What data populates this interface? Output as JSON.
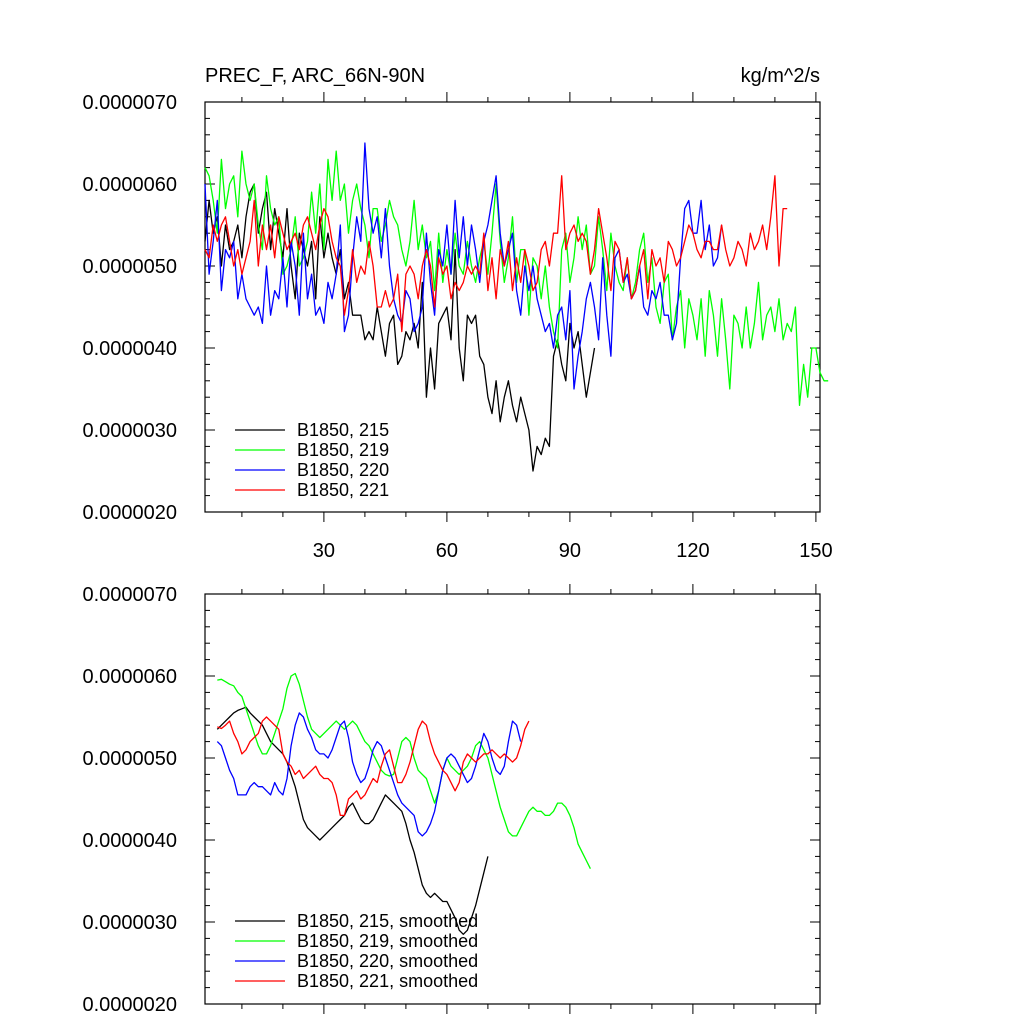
{
  "figure": {
    "title": "PREC_F, ARC_66N-90N",
    "units": "kg/m^2/s"
  },
  "chart_data": [
    {
      "type": "line",
      "title": "PREC_F, ARC_66N-90N",
      "units_label": "kg/m^2/s",
      "xlabel": "",
      "ylabel": "",
      "xlim": [
        1,
        151
      ],
      "ylim": [
        2e-06,
        7e-06
      ],
      "x_ticks": [
        30,
        60,
        90,
        120,
        150
      ],
      "x_tick_labels": [
        "30",
        "60",
        "90",
        "120",
        "150"
      ],
      "y_ticks": [
        2e-06,
        3e-06,
        4e-06,
        5e-06,
        6e-06,
        7e-06
      ],
      "y_tick_labels": [
        "0.0000020",
        "0.0000030",
        "0.0000040",
        "0.0000050",
        "0.0000060",
        "0.0000070"
      ],
      "legend_position": "bottom-left",
      "series": [
        {
          "name": "B1850, 215",
          "color": "#000000",
          "x0": 1,
          "values": [
            5.3,
            5.8,
            5.4,
            5.6,
            5.0,
            5.5,
            5.2,
            5.3,
            5.5,
            5.1,
            5.6,
            5.9,
            6.0,
            5.4,
            5.7,
            5.9,
            5.2,
            5.7,
            5.4,
            5.1,
            5.7,
            5.0,
            4.6,
            5.4,
            5.2,
            5.0,
            5.3,
            4.6,
            5.6,
            5.1,
            5.4,
            5.1,
            4.9,
            5.2,
            4.6,
            4.8,
            4.4,
            4.4,
            4.4,
            4.1,
            4.2,
            4.1,
            4.5,
            4.2,
            3.9,
            4.3,
            4.4,
            3.8,
            3.9,
            4.2,
            4.1,
            4.3,
            4.0,
            4.8,
            3.4,
            4.0,
            3.5,
            4.3,
            4.4,
            4.5,
            4.1,
            5.2,
            4.0,
            3.6,
            4.4,
            4.3,
            4.4,
            3.9,
            3.8,
            3.4,
            3.2,
            3.6,
            3.1,
            3.4,
            3.6,
            3.3,
            3.1,
            3.4,
            3.2,
            3.0,
            2.5,
            2.8,
            2.7,
            2.9,
            2.8,
            3.9,
            4.1,
            3.8,
            3.6,
            4.3,
            4.0,
            4.2,
            3.8,
            3.4,
            3.7,
            4.0
          ]
        },
        {
          "name": "B1850, 219",
          "color": "#00ff00",
          "x0": 1,
          "values": [
            6.2,
            6.1,
            5.8,
            5.4,
            6.3,
            5.7,
            6.0,
            6.1,
            5.6,
            6.4,
            6.0,
            5.8,
            6.0,
            5.5,
            5.2,
            6.1,
            5.7,
            5.5,
            5.6,
            4.9,
            5.0,
            5.2,
            5.6,
            5.0,
            5.1,
            5.3,
            5.9,
            5.4,
            6.0,
            5.2,
            6.3,
            5.8,
            6.4,
            5.8,
            6.0,
            5.4,
            5.8,
            6.0,
            5.7,
            5.5,
            5.1,
            5.7,
            5.7,
            5.3,
            5.5,
            5.8,
            5.6,
            5.5,
            5.2,
            5.0,
            5.3,
            5.8,
            5.2,
            5.5,
            5.1,
            5.3,
            4.7,
            5.4,
            4.8,
            5.2,
            4.9,
            5.4,
            5.0,
            4.9,
            5.3,
            5.0,
            4.8,
            5.1,
            5.3,
            4.9,
            5.4,
            6.0,
            5.3,
            4.8,
            5.1,
            5.6,
            4.8,
            5.2,
            5.2,
            4.4,
            5.1,
            5.0,
            4.6,
            5.0,
            4.5,
            4.2,
            4.0,
            5.2,
            5.4,
            4.8,
            5.1,
            5.6,
            5.2,
            5.5,
            4.9,
            5.0,
            5.6,
            5.2,
            4.7,
            5.4,
            5.0,
            4.8,
            4.7,
            5.1,
            4.6,
            4.8,
            5.2,
            5.4,
            4.8,
            5.1,
            4.5,
            4.3,
            4.8,
            4.9,
            4.1,
            4.5,
            4.7,
            4.0,
            4.6,
            4.4,
            4.1,
            4.6,
            3.9,
            4.7,
            4.4,
            3.9,
            4.6,
            4.1,
            3.5,
            4.4,
            4.3,
            4.0,
            4.5,
            4.0,
            4.3,
            4.8,
            4.1,
            4.4,
            4.5,
            4.2,
            4.6,
            4.1,
            4.3,
            4.2,
            4.5,
            3.3,
            3.8,
            3.4,
            4.0,
            4.0,
            3.7,
            3.6,
            3.6
          ]
        },
        {
          "name": "B1850, 220",
          "color": "#0000ff",
          "x0": 1,
          "values": [
            6.0,
            4.9,
            5.3,
            5.8,
            4.7,
            5.2,
            5.1,
            5.3,
            4.6,
            4.9,
            4.6,
            4.5,
            4.4,
            4.5,
            4.3,
            5.0,
            4.4,
            4.7,
            4.6,
            5.1,
            4.5,
            5.3,
            5.0,
            4.4,
            5.4,
            4.6,
            4.9,
            4.4,
            4.5,
            4.3,
            4.8,
            4.6,
            4.9,
            5.5,
            4.2,
            4.4,
            5.1,
            5.6,
            5.3,
            6.5,
            5.7,
            5.4,
            5.6,
            5.1,
            5.7,
            5.0,
            4.6,
            4.4,
            4.3,
            4.7,
            4.6,
            4.2,
            4.3,
            4.5,
            5.4,
            4.8,
            4.4,
            5.2,
            5.0,
            5.5,
            4.9,
            5.8,
            5.1,
            5.6,
            5.0,
            5.5,
            5.2,
            4.8,
            5.3,
            5.5,
            5.8,
            6.1,
            5.4,
            5.0,
            5.2,
            5.4,
            4.7,
            4.4,
            5.0,
            4.7,
            5.0,
            4.6,
            4.4,
            4.2,
            4.3,
            4.0,
            4.4,
            4.5,
            4.1,
            4.7,
            3.5,
            3.9,
            4.2,
            4.6,
            4.8,
            4.5,
            4.1,
            5.1,
            4.4,
            3.9,
            5.1,
            5.2,
            4.8,
            4.9,
            4.6,
            4.7,
            5.0,
            4.5,
            4.4,
            4.7,
            4.6,
            4.8,
            4.4,
            4.4,
            4.1,
            4.3,
            5.1,
            5.7,
            5.8,
            5.4,
            5.4,
            5.8,
            5.2,
            5.5,
            5.0,
            5.1,
            5.5
          ]
        },
        {
          "name": "B1850, 221",
          "color": "#ff0000",
          "x0": 1,
          "values": [
            5.2,
            5.1,
            5.5,
            5.3,
            5.5,
            5.6,
            5.3,
            5.0,
            5.2,
            4.9,
            5.1,
            5.3,
            5.8,
            5.0,
            5.5,
            5.2,
            5.5,
            5.1,
            5.6,
            5.4,
            5.2,
            5.3,
            5.4,
            5.2,
            5.5,
            5.6,
            5.4,
            5.2,
            5.5,
            5.7,
            5.6,
            5.3,
            5.1,
            5.0,
            4.4,
            4.7,
            5.2,
            4.8,
            5.0,
            4.9,
            5.3,
            5.0,
            4.5,
            4.5,
            4.7,
            4.5,
            4.6,
            4.9,
            4.2,
            4.9,
            5.0,
            4.9,
            4.6,
            5.0,
            5.2,
            5.0,
            4.5,
            5.1,
            4.9,
            5.0,
            4.6,
            4.8,
            4.7,
            4.8,
            5.0,
            4.9,
            5.0,
            4.9,
            5.4,
            4.7,
            5.1,
            4.6,
            5.2,
            5.0,
            5.3,
            4.7,
            5.1,
            4.8,
            5.2,
            5.0,
            4.7,
            4.8,
            5.2,
            5.3,
            5.0,
            5.4,
            5.4,
            6.1,
            5.2,
            5.4,
            5.5,
            5.3,
            5.4,
            5.3,
            4.9,
            5.2,
            5.7,
            5.4,
            5.1,
            4.7,
            5.3,
            5.2,
            4.8,
            5.1,
            4.6,
            4.7,
            5.0,
            5.2,
            4.6,
            5.2,
            5.0,
            5.1,
            4.8,
            5.3,
            5.2,
            5.0,
            5.1,
            5.3,
            5.5,
            5.4,
            5.2,
            5.1,
            5.3,
            5.3,
            5.2,
            5.2,
            5.5,
            5.2,
            5.0,
            5.1,
            5.3,
            5.2,
            5.0,
            5.4,
            5.2,
            5.3,
            5.5,
            5.2,
            5.6,
            6.1,
            5.0,
            5.7,
            5.7
          ]
        }
      ]
    },
    {
      "type": "line",
      "title": "",
      "xlabel": "",
      "ylabel": "",
      "xlim": [
        1,
        151
      ],
      "ylim": [
        2e-06,
        7e-06
      ],
      "x_ticks": [
        30,
        60,
        90,
        120,
        150
      ],
      "x_tick_labels": [],
      "y_ticks": [
        2e-06,
        3e-06,
        4e-06,
        5e-06,
        6e-06,
        7e-06
      ],
      "y_tick_labels": [
        "0.0000020",
        "0.0000030",
        "0.0000040",
        "0.0000050",
        "0.0000060",
        "0.0000070"
      ],
      "legend_position": "bottom-left",
      "series": [
        {
          "name": "B1850, 215, smoothed",
          "color": "#000000",
          "x0": 4,
          "values": [
            5.35,
            5.4,
            5.45,
            5.5,
            5.55,
            5.58,
            5.6,
            5.62,
            5.55,
            5.5,
            5.45,
            5.4,
            5.3,
            5.2,
            5.15,
            5.1,
            5.05,
            4.95,
            4.8,
            4.65,
            4.45,
            4.25,
            4.15,
            4.1,
            4.05,
            4.0,
            4.05,
            4.1,
            4.15,
            4.2,
            4.25,
            4.3,
            4.4,
            4.45,
            4.35,
            4.25,
            4.2,
            4.2,
            4.25,
            4.35,
            4.45,
            4.55,
            4.5,
            4.45,
            4.4,
            4.35,
            4.2,
            4.0,
            3.85,
            3.65,
            3.45,
            3.35,
            3.3,
            3.35,
            3.3,
            3.25,
            3.25,
            3.15,
            3.05,
            2.9,
            2.85,
            2.9,
            3.05,
            3.2,
            3.4,
            3.6,
            3.8
          ]
        },
        {
          "name": "B1850, 219, smoothed",
          "color": "#00ff00",
          "x0": 4,
          "values": [
            5.95,
            5.96,
            5.93,
            5.9,
            5.88,
            5.8,
            5.75,
            5.6,
            5.45,
            5.3,
            5.15,
            5.05,
            5.05,
            5.15,
            5.3,
            5.45,
            5.6,
            5.85,
            6.0,
            6.03,
            5.9,
            5.7,
            5.5,
            5.35,
            5.3,
            5.25,
            5.3,
            5.35,
            5.4,
            5.45,
            5.4,
            5.35,
            5.4,
            5.45,
            5.4,
            5.3,
            5.2,
            5.15,
            5.05,
            4.95,
            4.85,
            4.8,
            4.78,
            4.8,
            5.0,
            5.2,
            5.25,
            5.2,
            5.0,
            4.85,
            4.8,
            4.75,
            4.6,
            4.45,
            4.6,
            4.85,
            5.0,
            4.9,
            4.85,
            4.8,
            4.85,
            4.9,
            5.0,
            5.15,
            5.2,
            5.1,
            5.0,
            4.8,
            4.6,
            4.4,
            4.25,
            4.1,
            4.05,
            4.05,
            4.15,
            4.25,
            4.35,
            4.4,
            4.35,
            4.35,
            4.3,
            4.3,
            4.35,
            4.45,
            4.45,
            4.4,
            4.3,
            4.15,
            3.95,
            3.85,
            3.75,
            3.65
          ]
        },
        {
          "name": "B1850, 220, smoothed",
          "color": "#0000ff",
          "x0": 4,
          "values": [
            5.2,
            5.15,
            5.0,
            4.85,
            4.75,
            4.55,
            4.55,
            4.55,
            4.65,
            4.7,
            4.65,
            4.65,
            4.6,
            4.55,
            4.7,
            4.6,
            4.55,
            4.75,
            5.15,
            5.4,
            5.55,
            5.5,
            5.35,
            5.25,
            5.1,
            5.05,
            5.05,
            5.0,
            5.1,
            5.25,
            5.4,
            5.45,
            5.25,
            4.95,
            4.8,
            4.7,
            4.75,
            4.9,
            5.1,
            5.2,
            5.15,
            5.0,
            4.85,
            4.7,
            4.55,
            4.45,
            4.4,
            4.35,
            4.3,
            4.1,
            4.05,
            4.1,
            4.2,
            4.35,
            4.6,
            4.85,
            5.0,
            5.05,
            5.0,
            4.9,
            4.8,
            4.7,
            4.75,
            4.9,
            5.1,
            5.3,
            5.2,
            5.0,
            4.85,
            4.8,
            4.9,
            5.2,
            5.45,
            5.4,
            5.2
          ]
        },
        {
          "name": "B1850, 221, smoothed",
          "color": "#ff0000",
          "x0": 4,
          "values": [
            5.38,
            5.36,
            5.4,
            5.45,
            5.3,
            5.2,
            5.05,
            5.1,
            5.2,
            5.25,
            5.3,
            5.45,
            5.5,
            5.45,
            5.4,
            5.35,
            5.05,
            4.95,
            4.9,
            4.8,
            4.85,
            4.75,
            4.8,
            4.85,
            4.9,
            4.8,
            4.75,
            4.75,
            4.7,
            4.55,
            4.3,
            4.3,
            4.5,
            4.55,
            4.6,
            4.5,
            4.55,
            4.65,
            4.75,
            4.7,
            4.9,
            5.05,
            5.1,
            4.9,
            4.7,
            4.7,
            4.8,
            4.95,
            5.15,
            5.35,
            5.45,
            5.4,
            5.2,
            5.05,
            4.95,
            4.85,
            4.8,
            4.7,
            4.6,
            4.7,
            4.95,
            5.05,
            5.0,
            4.95,
            5.0,
            5.05,
            5.05,
            5.1,
            5.05,
            5.0,
            5.05,
            5.0,
            4.95,
            5.0,
            5.15,
            5.35,
            5.45
          ]
        }
      ]
    }
  ]
}
